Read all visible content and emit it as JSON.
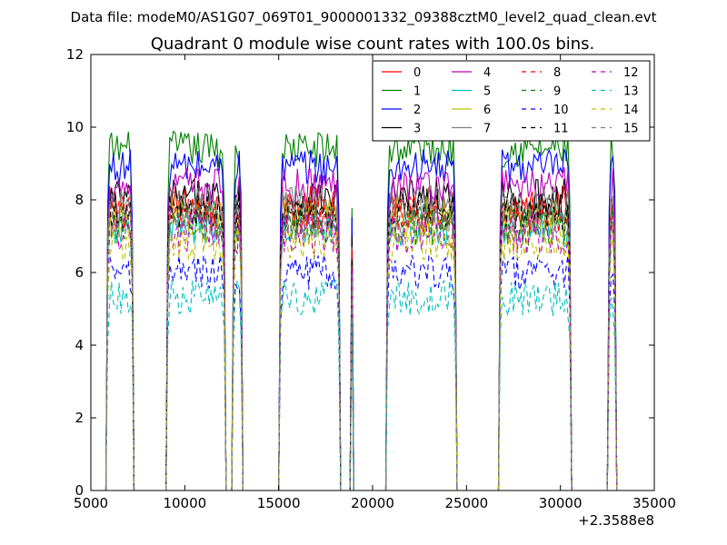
{
  "header": {
    "suptitle": "Data file: modeM0/AS1G07_069T01_9000001332_09388cztM0_level2_quad_clean.evt"
  },
  "chart_data": {
    "type": "line",
    "title": "Quadrant 0 module wise count rates with 100.0s bins.",
    "xlabel": "",
    "ylabel": "",
    "xlim": [
      5000,
      35000
    ],
    "ylim": [
      0,
      12
    ],
    "x_offset_label": "+2.3588e8",
    "x_ticks": [
      5000,
      10000,
      15000,
      20000,
      25000,
      30000,
      35000
    ],
    "x_tick_labels": [
      "5000",
      "10000",
      "15000",
      "20000",
      "25000",
      "30000",
      "35000"
    ],
    "y_ticks": [
      0,
      2,
      4,
      6,
      8,
      10,
      12
    ],
    "y_tick_labels": [
      "0",
      "2",
      "4",
      "6",
      "8",
      "10",
      "12"
    ],
    "grid": false,
    "legend_position": "top-right",
    "legend_columns": 4,
    "on_intervals": [
      [
        5800,
        7300
      ],
      [
        9000,
        12200
      ],
      [
        12500,
        13100
      ],
      [
        15000,
        18300
      ],
      [
        18800,
        19000
      ],
      [
        20700,
        24500
      ],
      [
        26700,
        30600
      ],
      [
        32500,
        33000
      ]
    ],
    "series": [
      {
        "name": "0",
        "color": "#ff0000",
        "dash": "solid",
        "level": 7.8
      },
      {
        "name": "1",
        "color": "#008000",
        "dash": "solid",
        "level": 9.4
      },
      {
        "name": "2",
        "color": "#0000ff",
        "dash": "solid",
        "level": 8.9
      },
      {
        "name": "3",
        "color": "#000000",
        "dash": "solid",
        "level": 8.0
      },
      {
        "name": "4",
        "color": "#bf00bf",
        "dash": "solid",
        "level": 8.4
      },
      {
        "name": "5",
        "color": "#00bfbf",
        "dash": "solid",
        "level": 7.2
      },
      {
        "name": "6",
        "color": "#bfbf00",
        "dash": "solid",
        "level": 7.5
      },
      {
        "name": "7",
        "color": "#808080",
        "dash": "solid",
        "level": 7.9
      },
      {
        "name": "8",
        "color": "#ff0000",
        "dash": "dashed",
        "level": 7.6
      },
      {
        "name": "9",
        "color": "#008000",
        "dash": "dashed",
        "level": 7.3
      },
      {
        "name": "10",
        "color": "#0000ff",
        "dash": "dashed",
        "level": 6.0
      },
      {
        "name": "11",
        "color": "#000000",
        "dash": "dashed",
        "level": 7.7
      },
      {
        "name": "12",
        "color": "#bf00bf",
        "dash": "dashed",
        "level": 7.1
      },
      {
        "name": "13",
        "color": "#00bfbf",
        "dash": "dashed",
        "level": 5.3
      },
      {
        "name": "14",
        "color": "#bfbf00",
        "dash": "dashed",
        "level": 6.8
      },
      {
        "name": "15",
        "color": "#808080",
        "dash": "dashed",
        "level": 7.4
      }
    ]
  }
}
